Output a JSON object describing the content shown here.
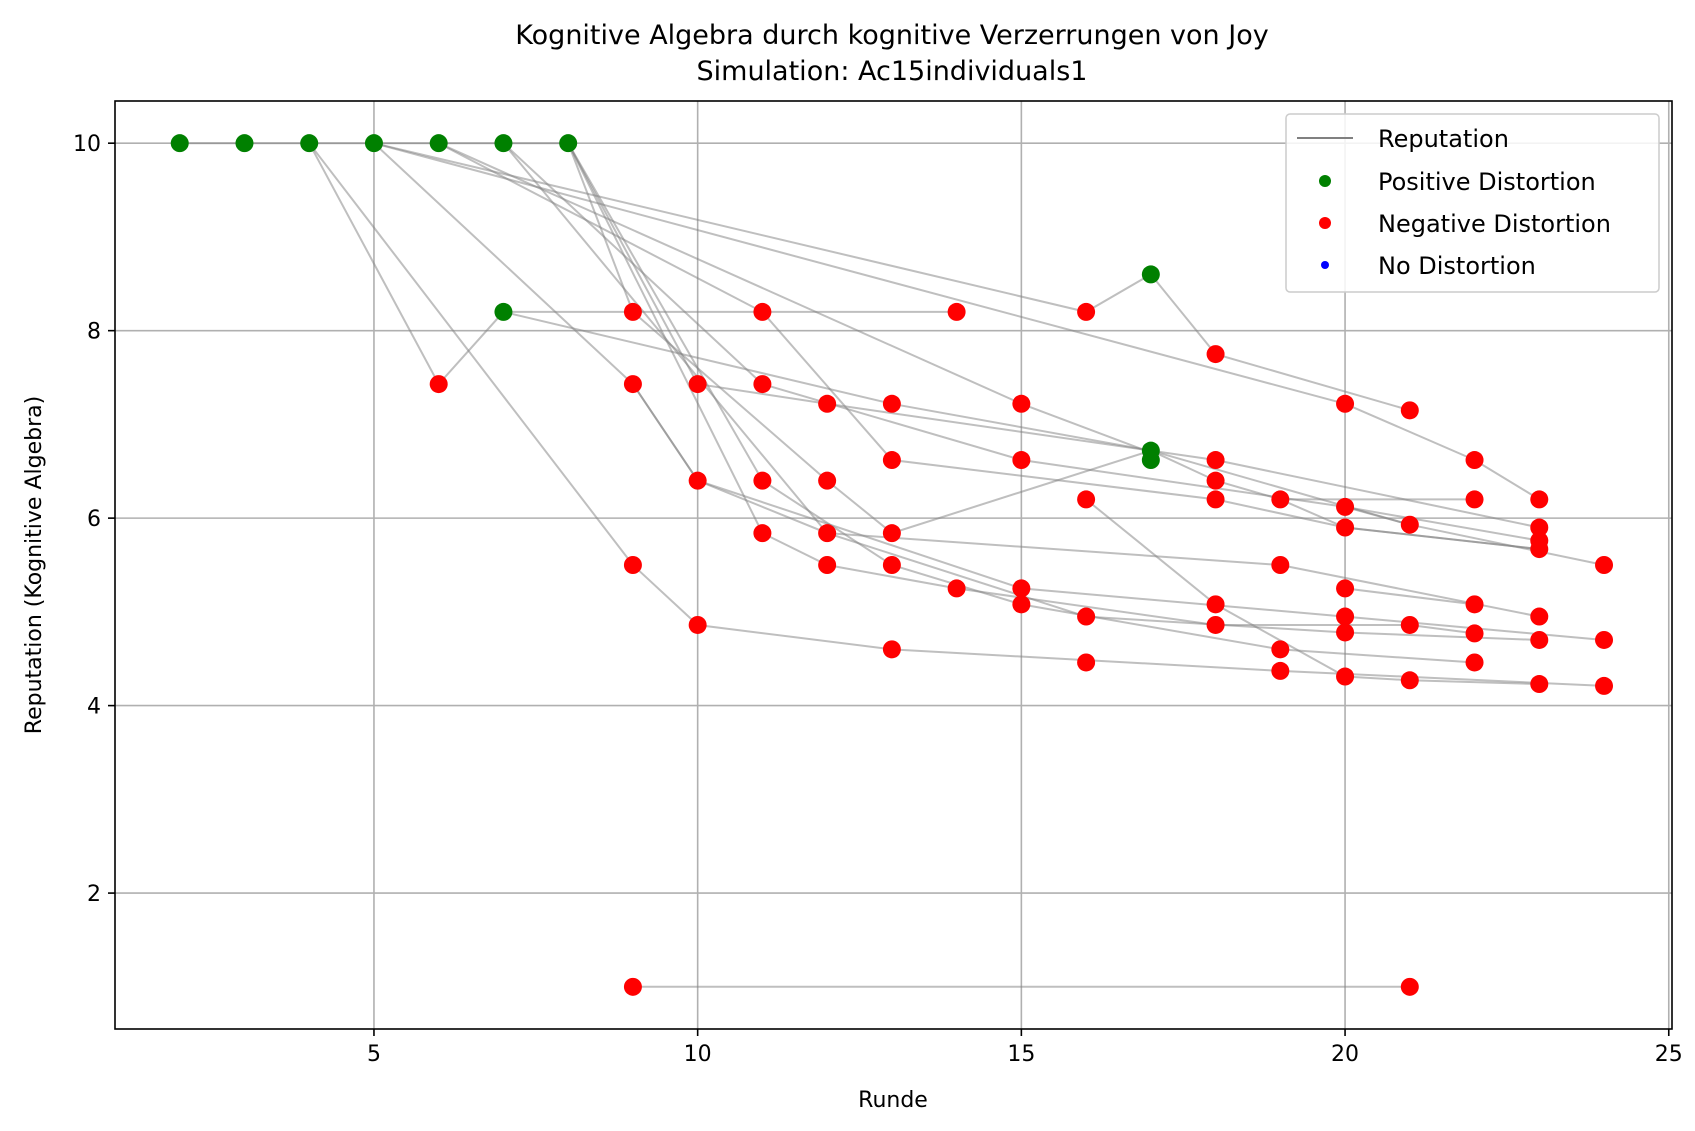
{
  "chart_data": {
    "type": "scatter",
    "title": "Kognitive Algebra durch kognitive Verzerrungen von Joy",
    "subtitle": "Simulation: Ac15individuals1",
    "xlabel": "Runde",
    "ylabel": "Reputation (Kognitive Algebra)",
    "xlim": [
      1.0,
      25.05
    ],
    "ylim": [
      0.55,
      10.45
    ],
    "xticks": [
      5,
      10,
      15,
      20,
      25
    ],
    "yticks": [
      2,
      4,
      6,
      8,
      10
    ],
    "grid": true,
    "legend_position": "top-right",
    "legend": [
      {
        "label": "Reputation",
        "kind": "line",
        "color": "#808080"
      },
      {
        "label": "Positive Distortion",
        "kind": "marker",
        "color": "#008000"
      },
      {
        "label": "Negative Distortion",
        "kind": "marker",
        "color": "#ff0000"
      },
      {
        "label": "No Distortion",
        "kind": "marker",
        "color": "#0000ff"
      }
    ],
    "colors": {
      "positive": "#008000",
      "negative": "#ff0000",
      "none": "#0000ff",
      "line": "#808080"
    },
    "series": [
      {
        "points": [
          [
            2,
            10
          ],
          [
            3,
            10
          ],
          [
            4,
            10
          ],
          [
            5,
            10
          ],
          [
            6,
            10
          ],
          [
            7,
            10
          ],
          [
            8,
            10
          ]
        ]
      },
      {
        "points": [
          [
            4,
            10
          ],
          [
            6,
            7.43
          ],
          [
            7,
            8.2
          ],
          [
            13,
            7.22
          ],
          [
            17,
            6.72
          ],
          [
            21,
            5.93
          ]
        ]
      },
      {
        "points": [
          [
            4,
            10
          ],
          [
            9,
            5.5
          ],
          [
            10,
            4.86
          ],
          [
            13,
            4.6
          ],
          [
            19,
            4.37
          ],
          [
            24,
            4.21
          ]
        ]
      },
      {
        "points": [
          [
            5,
            10
          ],
          [
            9,
            7.43
          ],
          [
            10,
            6.4
          ],
          [
            12,
            5.84
          ],
          [
            19,
            5.5
          ],
          [
            23,
            4.95
          ]
        ]
      },
      {
        "points": [
          [
            5,
            10
          ],
          [
            16,
            8.2
          ],
          [
            17,
            8.6
          ],
          [
            18,
            7.75
          ],
          [
            21,
            7.15
          ]
        ]
      },
      {
        "points": [
          [
            5,
            10
          ],
          [
            20,
            7.22
          ],
          [
            22,
            6.62
          ],
          [
            23,
            6.2
          ]
        ]
      },
      {
        "points": [
          [
            6,
            10
          ],
          [
            11,
            8.2
          ],
          [
            13,
            6.62
          ],
          [
            18,
            6.2
          ],
          [
            20,
            5.9
          ],
          [
            23,
            5.67
          ]
        ]
      },
      {
        "points": [
          [
            6,
            10
          ],
          [
            15,
            7.22
          ],
          [
            17,
            6.7
          ]
        ]
      },
      {
        "points": [
          [
            7,
            10
          ],
          [
            11,
            7.43
          ],
          [
            15,
            6.62
          ],
          [
            20,
            6.12
          ],
          [
            23,
            5.76
          ]
        ]
      },
      {
        "points": [
          [
            7,
            10
          ],
          [
            12,
            5.84
          ],
          [
            16,
            4.95
          ],
          [
            20,
            4.78
          ],
          [
            23,
            4.7
          ]
        ]
      },
      {
        "points": [
          [
            7,
            8.2
          ],
          [
            14,
            8.2
          ]
        ]
      },
      {
        "points": [
          [
            8,
            10
          ],
          [
            9,
            8.2
          ],
          [
            12,
            6.4
          ],
          [
            13,
            5.84
          ],
          [
            17,
            6.72
          ],
          [
            18,
            6.4
          ],
          [
            19,
            6.2
          ],
          [
            22,
            6.2
          ]
        ]
      },
      {
        "points": [
          [
            8,
            10
          ],
          [
            10,
            7.43
          ],
          [
            12,
            7.22
          ],
          [
            18,
            6.62
          ],
          [
            23,
            5.9
          ]
        ]
      },
      {
        "points": [
          [
            8,
            10
          ],
          [
            11,
            5.84
          ],
          [
            12,
            5.5
          ],
          [
            14,
            5.25
          ],
          [
            18,
            4.86
          ],
          [
            21,
            4.86
          ],
          [
            22,
            4.77
          ]
        ]
      },
      {
        "points": [
          [
            8,
            10
          ],
          [
            11,
            6.4
          ],
          [
            13,
            5.5
          ],
          [
            15,
            5.08
          ],
          [
            19,
            4.6
          ],
          [
            22,
            4.46
          ]
        ]
      },
      {
        "points": [
          [
            9,
            7.43
          ],
          [
            10,
            6.4
          ],
          [
            15,
            5.25
          ],
          [
            20,
            4.95
          ],
          [
            24,
            4.7
          ]
        ]
      },
      {
        "points": [
          [
            16,
            6.2
          ],
          [
            18,
            5.08
          ],
          [
            20,
            4.31
          ],
          [
            21,
            4.27
          ],
          [
            23,
            4.23
          ]
        ]
      },
      {
        "points": [
          [
            19,
            6.2
          ],
          [
            20,
            5.9
          ],
          [
            23,
            5.67
          ]
        ]
      },
      {
        "points": [
          [
            20,
            5.25
          ],
          [
            22,
            5.08
          ]
        ]
      },
      {
        "points": [
          [
            20,
            6.12
          ],
          [
            21,
            5.93
          ],
          [
            24,
            5.5
          ]
        ]
      },
      {
        "points": [
          [
            9,
            1.0
          ],
          [
            21,
            1.0
          ]
        ]
      }
    ],
    "points_positive": [
      [
        2,
        10
      ],
      [
        3,
        10
      ],
      [
        4,
        10
      ],
      [
        5,
        10
      ],
      [
        6,
        10
      ],
      [
        7,
        10
      ],
      [
        8,
        10
      ],
      [
        7,
        8.2
      ],
      [
        17,
        8.6
      ],
      [
        17,
        6.72
      ],
      [
        17,
        6.62
      ]
    ],
    "points_negative": [
      [
        6,
        7.43
      ],
      [
        9,
        8.2
      ],
      [
        9,
        7.43
      ],
      [
        9,
        5.5
      ],
      [
        9,
        1.0
      ],
      [
        10,
        7.43
      ],
      [
        10,
        6.4
      ],
      [
        10,
        4.86
      ],
      [
        11,
        8.2
      ],
      [
        11,
        7.43
      ],
      [
        11,
        6.4
      ],
      [
        11,
        5.84
      ],
      [
        12,
        7.22
      ],
      [
        12,
        6.4
      ],
      [
        12,
        5.84
      ],
      [
        12,
        5.5
      ],
      [
        13,
        7.22
      ],
      [
        13,
        6.62
      ],
      [
        13,
        5.84
      ],
      [
        13,
        5.5
      ],
      [
        13,
        4.6
      ],
      [
        14,
        8.2
      ],
      [
        14,
        5.25
      ],
      [
        15,
        7.22
      ],
      [
        15,
        6.62
      ],
      [
        15,
        5.25
      ],
      [
        15,
        5.08
      ],
      [
        16,
        8.2
      ],
      [
        16,
        6.2
      ],
      [
        16,
        4.95
      ],
      [
        16,
        4.46
      ],
      [
        18,
        7.75
      ],
      [
        18,
        6.62
      ],
      [
        18,
        6.4
      ],
      [
        18,
        6.2
      ],
      [
        18,
        5.08
      ],
      [
        18,
        4.86
      ],
      [
        19,
        6.2
      ],
      [
        19,
        5.5
      ],
      [
        19,
        4.6
      ],
      [
        19,
        4.37
      ],
      [
        20,
        7.22
      ],
      [
        20,
        6.12
      ],
      [
        20,
        5.9
      ],
      [
        20,
        5.25
      ],
      [
        20,
        4.95
      ],
      [
        20,
        4.78
      ],
      [
        20,
        4.31
      ],
      [
        21,
        7.15
      ],
      [
        21,
        5.93
      ],
      [
        21,
        4.86
      ],
      [
        21,
        4.27
      ],
      [
        21,
        1.0
      ],
      [
        22,
        6.62
      ],
      [
        22,
        6.2
      ],
      [
        22,
        5.08
      ],
      [
        22,
        4.77
      ],
      [
        22,
        4.46
      ],
      [
        23,
        6.2
      ],
      [
        23,
        5.9
      ],
      [
        23,
        5.76
      ],
      [
        23,
        5.67
      ],
      [
        23,
        4.95
      ],
      [
        23,
        4.7
      ],
      [
        23,
        4.23
      ],
      [
        24,
        5.5
      ],
      [
        24,
        4.7
      ],
      [
        24,
        4.21
      ]
    ],
    "points_none": []
  }
}
